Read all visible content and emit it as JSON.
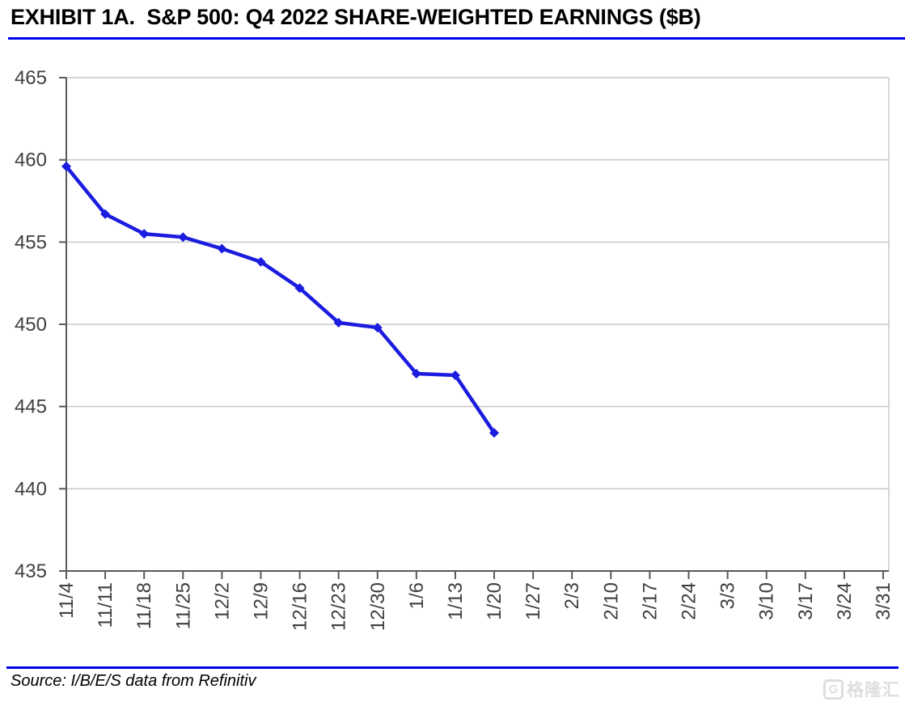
{
  "header": {
    "title": "EXHIBIT 1A.  S&P 500: Q4 2022 SHARE-WEIGHTED EARNINGS ($B)"
  },
  "footer": {
    "source": "Source: I/B/E/S data from Refinitiv",
    "watermark_icon": "G",
    "watermark_text": "格隆汇"
  },
  "colors": {
    "accent_blue": "#0000ee",
    "line_blue": "#1c1ce0",
    "grid": "#c8c8c8",
    "axis": "#595959",
    "tick_text": "#3f3f3f",
    "watermark": "#dedede"
  },
  "chart_data": {
    "type": "line",
    "title": "S&P 500: Q4 2022 share-weighted earnings ($B)",
    "categories": [
      "11/4",
      "11/11",
      "11/18",
      "11/25",
      "12/2",
      "12/9",
      "12/16",
      "12/23",
      "12/30",
      "1/6",
      "1/13",
      "1/20",
      "1/27",
      "2/3",
      "2/10",
      "2/17",
      "2/24",
      "3/3",
      "3/10",
      "3/17",
      "3/24",
      "3/31"
    ],
    "series": [
      {
        "name": "Q4 2022 share-weighted earnings ($B)",
        "values": [
          459.6,
          456.7,
          455.5,
          455.3,
          454.6,
          453.8,
          452.2,
          450.1,
          449.8,
          447.0,
          446.9,
          443.4,
          null,
          null,
          null,
          null,
          null,
          null,
          null,
          null,
          null,
          null
        ]
      }
    ],
    "yticks": [
      435,
      440,
      445,
      450,
      455,
      460,
      465
    ],
    "ylim": [
      435,
      465
    ],
    "xlabel": "",
    "ylabel": "",
    "grid": "horizontal",
    "legend": "none",
    "marker": "diamond",
    "x_tick_rotation": -90
  }
}
